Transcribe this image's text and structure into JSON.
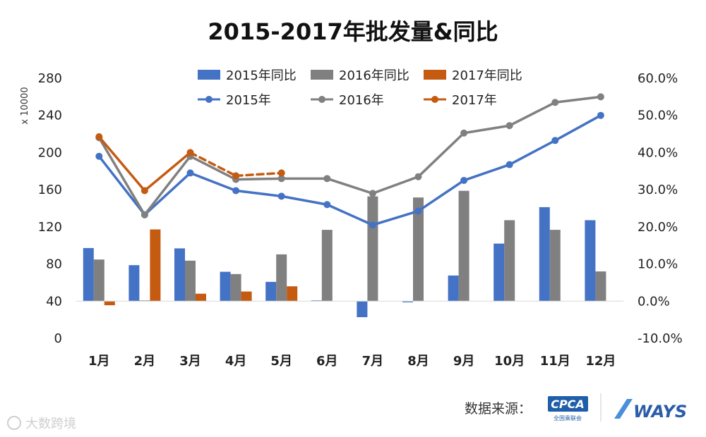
{
  "source": {
    "label": "数据来源：",
    "org_name": "全国乘联会",
    "watermark": "大数跨境"
  },
  "chart_data": {
    "type": "bar+line",
    "title": "2015-2017年批发量&同比",
    "y_unit": "x 10000",
    "categories": [
      "1月",
      "2月",
      "3月",
      "4月",
      "5月",
      "6月",
      "7月",
      "8月",
      "9月",
      "10月",
      "11月",
      "12月"
    ],
    "ylim_left": [
      0,
      280
    ],
    "yticks_left": [
      0,
      40,
      80,
      120,
      160,
      200,
      240,
      280
    ],
    "ytick_labels_left": [
      "0",
      "40",
      "80",
      "120",
      "160",
      "200",
      "240",
      "280"
    ],
    "ylim_right": [
      -10,
      60
    ],
    "yticks_right": [
      -10,
      0,
      10,
      20,
      30,
      40,
      50,
      60
    ],
    "ytick_labels_right": [
      "-10.0%",
      "0.0%",
      "10.0%",
      "20.0%",
      "30.0%",
      "40.0%",
      "50.0%",
      "60.0%"
    ],
    "bar_series": [
      {
        "name": "2015年同比",
        "axis": "right",
        "color": "#4472c4",
        "values": [
          14.3,
          9.7,
          14.2,
          7.9,
          5.2,
          0.2,
          -4.3,
          -0.3,
          6.9,
          15.5,
          25.3,
          21.8
        ]
      },
      {
        "name": "2016年同比",
        "axis": "right",
        "color": "#808080",
        "values": [
          11.2,
          0.2,
          10.9,
          7.3,
          12.6,
          19.2,
          28.2,
          27.9,
          29.7,
          21.8,
          19.2,
          8.0
        ]
      },
      {
        "name": "2017年同比",
        "axis": "right",
        "color": "#c55a11",
        "values": [
          -1.1,
          19.3,
          2.0,
          2.6,
          4.0,
          null,
          null,
          null,
          null,
          null,
          null,
          null
        ]
      }
    ],
    "line_series": [
      {
        "name": "2015年",
        "axis": "left",
        "color": "#4472c4",
        "values": [
          196,
          133,
          178,
          159,
          153,
          144,
          122,
          137,
          170,
          187,
          213,
          240
        ]
      },
      {
        "name": "2016年",
        "axis": "left",
        "color": "#808080",
        "values": [
          216,
          133,
          196,
          171,
          172,
          172,
          156,
          174,
          221,
          229,
          254,
          260
        ]
      },
      {
        "name": "2017年",
        "axis": "left",
        "color": "#c55a11",
        "values": [
          217,
          159,
          200,
          175,
          178,
          null,
          null,
          null,
          null,
          null,
          null,
          null
        ],
        "dashed_from_index": 2
      }
    ],
    "legend": {
      "placement": "top"
    },
    "grid": false
  }
}
